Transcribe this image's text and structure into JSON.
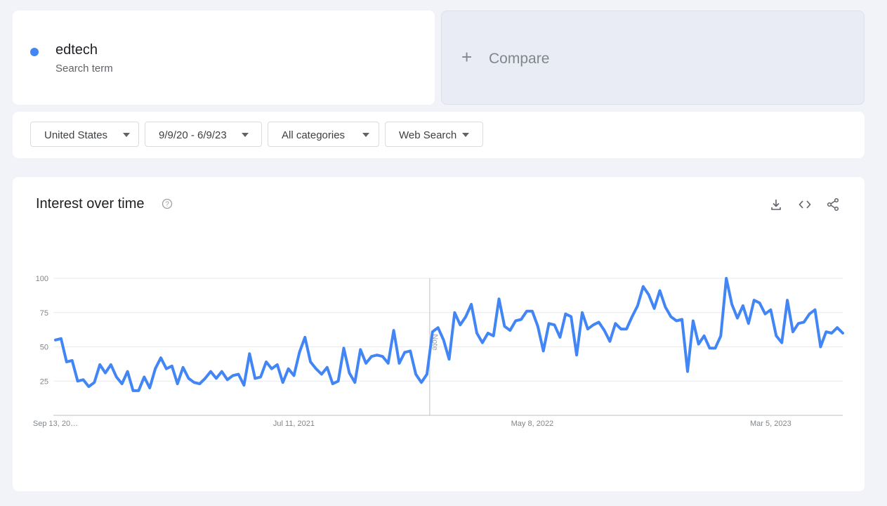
{
  "search_term": {
    "name": "edtech",
    "subtitle": "Search term",
    "color": "#4285f4"
  },
  "compare": {
    "label": "Compare",
    "icon": "plus-icon"
  },
  "filters": [
    {
      "label": "United States"
    },
    {
      "label": "9/9/20 - 6/9/23"
    },
    {
      "label": "All categories"
    },
    {
      "label": "Web Search"
    }
  ],
  "chart": {
    "title": "Interest over time",
    "actions": [
      "download-icon",
      "embed-code-icon",
      "share-icon"
    ],
    "help_icon": "help-circle-icon"
  },
  "chart_data": {
    "type": "line",
    "title": "Interest over time",
    "xlabel": "",
    "ylabel": "",
    "ylim": [
      0,
      100
    ],
    "yticks": [
      25,
      50,
      75,
      100
    ],
    "xtick_labels": [
      "Sep 13, 20…",
      "Jul 11, 2021",
      "May 8, 2022",
      "Mar 5, 2023"
    ],
    "grid": true,
    "annotation": "Note",
    "series": [
      {
        "name": "edtech",
        "color": "#4285f4",
        "values": [
          55,
          56,
          39,
          40,
          25,
          26,
          21,
          24,
          37,
          31,
          37,
          28,
          23,
          32,
          18,
          18,
          28,
          20,
          34,
          42,
          34,
          36,
          23,
          35,
          27,
          24,
          23,
          27,
          32,
          27,
          32,
          26,
          29,
          30,
          22,
          45,
          27,
          28,
          39,
          34,
          37,
          24,
          34,
          29,
          46,
          57,
          39,
          34,
          30,
          35,
          23,
          25,
          49,
          31,
          24,
          48,
          38,
          43,
          44,
          43,
          38,
          62,
          38,
          46,
          47,
          30,
          24,
          30,
          61,
          64,
          55,
          41,
          75,
          66,
          72,
          81,
          60,
          53,
          60,
          58,
          85,
          65,
          62,
          69,
          70,
          76,
          76,
          65,
          47,
          67,
          66,
          57,
          74,
          72,
          44,
          75,
          63,
          66,
          68,
          62,
          54,
          67,
          63,
          63,
          72,
          80,
          94,
          88,
          78,
          91,
          79,
          72,
          69,
          70,
          32,
          69,
          52,
          58,
          49,
          49,
          58,
          100,
          81,
          71,
          80,
          67,
          84,
          82,
          74,
          77,
          58,
          53,
          84,
          61,
          67,
          68,
          74,
          77,
          50,
          61,
          60,
          64,
          60
        ]
      }
    ]
  }
}
